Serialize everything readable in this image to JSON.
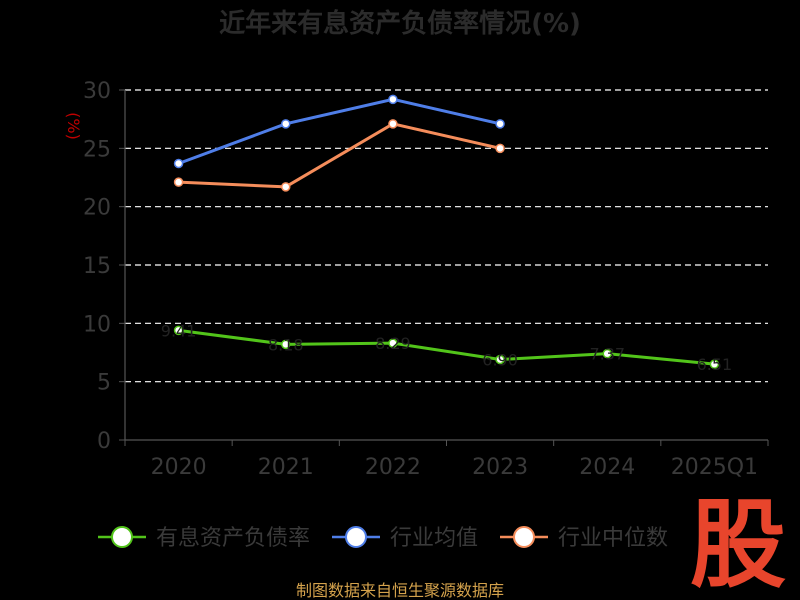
{
  "chart_data": {
    "type": "line",
    "title": "近年来有息资产负债率情况(%)",
    "ylabel": "(%)",
    "xlabel": "",
    "categories": [
      "2020",
      "2021",
      "2022",
      "2023",
      "2024",
      "2025Q1"
    ],
    "ylim": [
      0,
      30
    ],
    "yticks": [
      0,
      5,
      10,
      15,
      20,
      25,
      30
    ],
    "grid": true,
    "legend_position": "bottom",
    "series": [
      {
        "name": "有息资产负债率",
        "color": "#52c41a",
        "values": [
          9.4,
          8.2,
          8.3,
          6.9,
          7.4,
          6.5
        ],
        "labels": [
          "9.41",
          "8.18",
          "8.29",
          "6.90",
          "7.37",
          "6.51"
        ]
      },
      {
        "name": "行业均值",
        "color": "#4f7ee8",
        "values": [
          23.7,
          27.1,
          29.2,
          27.1,
          null,
          null
        ]
      },
      {
        "name": "行业中位数",
        "color": "#f58d5b",
        "values": [
          22.1,
          21.7,
          27.1,
          25.0,
          null,
          null
        ]
      }
    ]
  },
  "source": "制图数据来自恒生聚源数据库",
  "watermark": "股"
}
